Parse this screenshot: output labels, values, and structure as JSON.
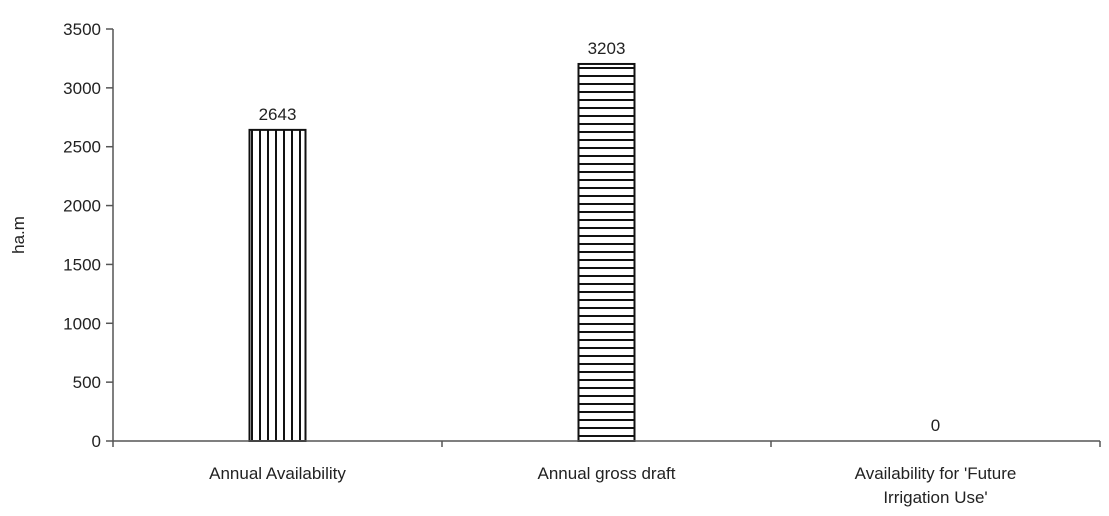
{
  "chart_data": {
    "type": "bar",
    "categories": [
      "Annual Availability",
      "Annual gross draft",
      "Availability for 'Future Irrigation Use'"
    ],
    "values": [
      2643,
      3203,
      0
    ],
    "data_labels": [
      "2643",
      "3203",
      "0"
    ],
    "title": "",
    "xlabel": "",
    "ylabel": "ha.m",
    "ylim": [
      0,
      3500
    ],
    "yticks": [
      0,
      500,
      1000,
      1500,
      2000,
      2500,
      3000,
      3500
    ],
    "bar_patterns": [
      "vertical-stripes",
      "horizontal-stripes",
      "none"
    ],
    "grid": false,
    "legend": "none",
    "colors": {
      "bar_fill": "#ffffff",
      "bar_stroke": "#111111",
      "axis": "#555555"
    }
  }
}
